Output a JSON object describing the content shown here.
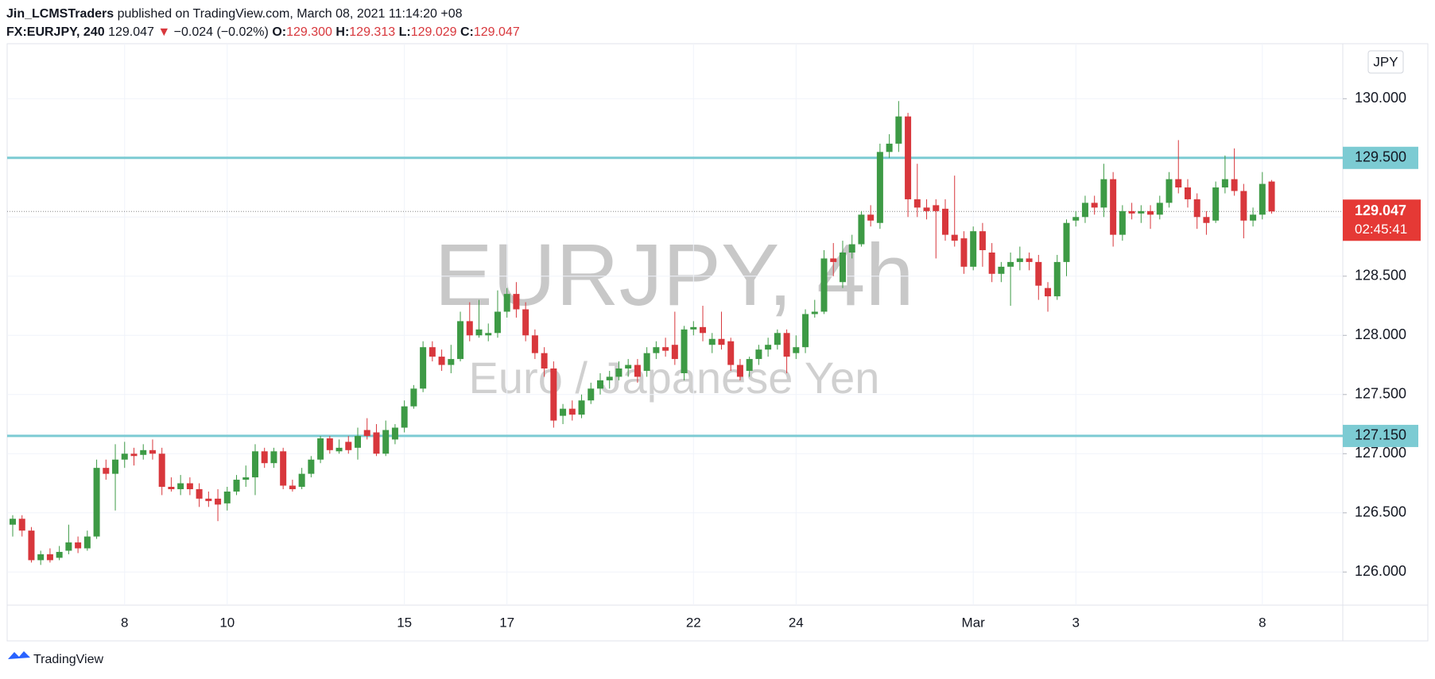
{
  "header": {
    "user": "Jin_LCMSTraders",
    "published": "published on TradingView.com, March 08, 2021 11:14:20 +08",
    "symbol": "FX:EURJPY, 240",
    "last": "129.047",
    "arrow": "▼",
    "change": "−0.024 (−0.02%)",
    "open_label": "O:",
    "open": "129.300",
    "high_label": "H:",
    "high": "129.313",
    "low_label": "L:",
    "low": "129.029",
    "close_label": "C:",
    "close": "129.047"
  },
  "chart_data": {
    "type": "candlestick",
    "watermark": "EURJPY, 4h",
    "watermark_subtitle": "Euro / Japanese Yen",
    "currency": "JPY",
    "brand": "TradingView",
    "up_color": "#3d9a45",
    "down_color": "#d8373c",
    "grid": true,
    "ylim": [
      125.72,
      130.465
    ],
    "yticks": [
      {
        "value": 126,
        "label": "126.000"
      },
      {
        "value": 126.5,
        "label": "126.500"
      },
      {
        "value": 127,
        "label": "127.000"
      },
      {
        "value": 127.5,
        "label": "127.500"
      },
      {
        "value": 128,
        "label": "128.000"
      },
      {
        "value": 128.5,
        "label": "128.500"
      },
      {
        "value": 129,
        "label": "129.000"
      },
      {
        "value": 129.5,
        "label": "129.500"
      },
      {
        "value": 130,
        "label": "130.000"
      }
    ],
    "hlines": [
      {
        "value": 129.5,
        "label": "129.500",
        "color": "#7ccbd3"
      },
      {
        "value": 127.15,
        "label": "127.150",
        "color": "#7ccbd3"
      }
    ],
    "last_price": {
      "value": 129.047,
      "label": "129.047",
      "countdown": "02:45:41",
      "color": "#e53935"
    },
    "categories": [
      null,
      null,
      null,
      null,
      null,
      null,
      null,
      null,
      null,
      null,
      null,
      null,
      "8",
      null,
      null,
      null,
      null,
      null,
      null,
      null,
      null,
      null,
      null,
      "10",
      null,
      null,
      null,
      null,
      null,
      null,
      null,
      null,
      null,
      null,
      null,
      null,
      null,
      null,
      null,
      null,
      null,
      null,
      "15",
      null,
      null,
      null,
      null,
      null,
      null,
      null,
      null,
      null,
      null,
      "17",
      null,
      null,
      null,
      null,
      null,
      null,
      null,
      null,
      null,
      null,
      null,
      null,
      null,
      null,
      null,
      null,
      null,
      null,
      null,
      "22",
      null,
      null,
      null,
      null,
      null,
      null,
      null,
      null,
      null,
      null,
      "24",
      null,
      null,
      null,
      null,
      null,
      null,
      null,
      null,
      null,
      null,
      null,
      null,
      null,
      null,
      null,
      null,
      null,
      null,
      "Mar",
      null,
      null,
      null,
      null,
      null,
      null,
      null,
      null,
      null,
      null,
      "3",
      null,
      null,
      null,
      null,
      null,
      null,
      null,
      null,
      null,
      null,
      null,
      null,
      null,
      null,
      null,
      null,
      null,
      null,
      null,
      "8",
      null
    ],
    "ohlc": [
      [
        126.4,
        126.48,
        126.3,
        126.45
      ],
      [
        126.45,
        126.48,
        126.3,
        126.35
      ],
      [
        126.35,
        126.38,
        126.08,
        126.1
      ],
      [
        126.1,
        126.18,
        126.06,
        126.15
      ],
      [
        126.15,
        126.2,
        126.08,
        126.1
      ],
      [
        126.12,
        126.22,
        126.1,
        126.17
      ],
      [
        126.18,
        126.4,
        126.15,
        126.25
      ],
      [
        126.25,
        126.3,
        126.16,
        126.2
      ],
      [
        126.2,
        126.35,
        126.18,
        126.3
      ],
      [
        126.3,
        126.95,
        126.28,
        126.88
      ],
      [
        126.88,
        126.95,
        126.78,
        126.83
      ],
      [
        126.83,
        127.08,
        126.52,
        126.95
      ],
      [
        126.95,
        127.1,
        126.88,
        127.0
      ],
      [
        127.0,
        127.05,
        126.9,
        126.98
      ],
      [
        126.99,
        127.08,
        126.95,
        127.03
      ],
      [
        127.03,
        127.12,
        126.95,
        127.0
      ],
      [
        127.0,
        127.05,
        126.65,
        126.72
      ],
      [
        126.72,
        126.8,
        126.68,
        126.7
      ],
      [
        126.7,
        126.82,
        126.65,
        126.75
      ],
      [
        126.75,
        126.8,
        126.65,
        126.7
      ],
      [
        126.7,
        126.75,
        126.55,
        126.62
      ],
      [
        126.62,
        126.68,
        126.55,
        126.6
      ],
      [
        126.62,
        126.7,
        126.43,
        126.57
      ],
      [
        126.58,
        126.72,
        126.52,
        126.68
      ],
      [
        126.68,
        126.82,
        126.65,
        126.78
      ],
      [
        126.78,
        126.9,
        126.72,
        126.8
      ],
      [
        126.8,
        127.08,
        126.65,
        127.02
      ],
      [
        127.02,
        127.05,
        126.88,
        126.92
      ],
      [
        126.92,
        127.05,
        126.88,
        127.02
      ],
      [
        127.02,
        127.05,
        126.7,
        126.73
      ],
      [
        126.73,
        126.78,
        126.68,
        126.7
      ],
      [
        126.72,
        126.88,
        126.7,
        126.83
      ],
      [
        126.83,
        126.98,
        126.8,
        126.95
      ],
      [
        126.95,
        127.15,
        126.92,
        127.13
      ],
      [
        127.13,
        127.15,
        127.0,
        127.03
      ],
      [
        127.02,
        127.12,
        127.0,
        127.05
      ],
      [
        127.1,
        127.15,
        127.0,
        127.03
      ],
      [
        127.05,
        127.22,
        126.95,
        127.15
      ],
      [
        127.2,
        127.3,
        127.12,
        127.15
      ],
      [
        127.18,
        127.25,
        126.98,
        127.0
      ],
      [
        127.0,
        127.28,
        126.98,
        127.2
      ],
      [
        127.12,
        127.25,
        127.08,
        127.22
      ],
      [
        127.22,
        127.45,
        127.18,
        127.4
      ],
      [
        127.4,
        127.58,
        127.38,
        127.55
      ],
      [
        127.55,
        127.95,
        127.52,
        127.9
      ],
      [
        127.9,
        127.95,
        127.78,
        127.82
      ],
      [
        127.82,
        127.88,
        127.7,
        127.75
      ],
      [
        127.75,
        127.92,
        127.68,
        127.8
      ],
      [
        127.8,
        128.2,
        127.78,
        128.12
      ],
      [
        128.12,
        128.28,
        127.95,
        128.0
      ],
      [
        128.0,
        128.3,
        127.98,
        128.05
      ],
      [
        128.0,
        128.1,
        127.95,
        128.02
      ],
      [
        128.02,
        128.38,
        127.98,
        128.2
      ],
      [
        128.2,
        128.4,
        128.15,
        128.35
      ],
      [
        128.35,
        128.45,
        128.15,
        128.22
      ],
      [
        128.22,
        128.28,
        127.95,
        128.0
      ],
      [
        128.0,
        128.05,
        127.8,
        127.85
      ],
      [
        127.85,
        127.9,
        127.65,
        127.72
      ],
      [
        127.72,
        127.78,
        127.22,
        127.28
      ],
      [
        127.32,
        127.42,
        127.25,
        127.38
      ],
      [
        127.38,
        127.45,
        127.28,
        127.33
      ],
      [
        127.33,
        127.5,
        127.3,
        127.45
      ],
      [
        127.45,
        127.6,
        127.42,
        127.55
      ],
      [
        127.55,
        127.68,
        127.5,
        127.62
      ],
      [
        127.62,
        127.7,
        127.55,
        127.65
      ],
      [
        127.65,
        127.78,
        127.62,
        127.72
      ],
      [
        127.72,
        127.8,
        127.65,
        127.75
      ],
      [
        127.75,
        127.8,
        127.6,
        127.65
      ],
      [
        127.7,
        127.9,
        127.65,
        127.85
      ],
      [
        127.85,
        127.95,
        127.8,
        127.9
      ],
      [
        127.9,
        127.98,
        127.82,
        127.87
      ],
      [
        127.92,
        128.2,
        127.75,
        127.8
      ],
      [
        127.68,
        128.08,
        127.62,
        128.05
      ],
      [
        128.05,
        128.12,
        128.0,
        128.07
      ],
      [
        128.07,
        128.25,
        127.95,
        128.02
      ],
      [
        127.92,
        128.02,
        127.85,
        127.97
      ],
      [
        127.97,
        128.2,
        127.88,
        127.92
      ],
      [
        127.95,
        127.98,
        127.7,
        127.75
      ],
      [
        127.75,
        127.8,
        127.62,
        127.65
      ],
      [
        127.7,
        127.82,
        127.65,
        127.8
      ],
      [
        127.8,
        127.92,
        127.75,
        127.88
      ],
      [
        127.88,
        127.98,
        127.82,
        127.92
      ],
      [
        127.92,
        128.05,
        127.88,
        128.02
      ],
      [
        128.02,
        128.05,
        127.68,
        127.82
      ],
      [
        127.85,
        128.0,
        127.8,
        127.9
      ],
      [
        127.9,
        128.22,
        127.85,
        128.18
      ],
      [
        128.18,
        128.3,
        128.15,
        128.2
      ],
      [
        128.2,
        128.72,
        128.18,
        128.65
      ],
      [
        128.65,
        128.78,
        128.5,
        128.62
      ],
      [
        128.45,
        128.8,
        128.4,
        128.7
      ],
      [
        128.7,
        128.85,
        128.65,
        128.77
      ],
      [
        128.77,
        129.05,
        128.75,
        129.02
      ],
      [
        129.02,
        129.1,
        128.92,
        128.97
      ],
      [
        128.95,
        129.62,
        128.9,
        129.55
      ],
      [
        129.55,
        129.7,
        129.5,
        129.62
      ],
      [
        129.62,
        129.98,
        129.55,
        129.85
      ],
      [
        129.85,
        129.88,
        129.0,
        129.15
      ],
      [
        129.15,
        129.45,
        129.0,
        129.08
      ],
      [
        129.08,
        129.15,
        128.98,
        129.05
      ],
      [
        129.1,
        129.15,
        128.65,
        129.05
      ],
      [
        129.07,
        129.15,
        128.8,
        128.85
      ],
      [
        128.85,
        129.35,
        128.75,
        128.8
      ],
      [
        128.82,
        128.88,
        128.52,
        128.58
      ],
      [
        128.58,
        128.92,
        128.55,
        128.88
      ],
      [
        128.88,
        128.95,
        128.58,
        128.72
      ],
      [
        128.7,
        128.78,
        128.45,
        128.52
      ],
      [
        128.52,
        128.62,
        128.45,
        128.58
      ],
      [
        128.58,
        128.7,
        128.25,
        128.62
      ],
      [
        128.62,
        128.75,
        128.55,
        128.65
      ],
      [
        128.65,
        128.7,
        128.55,
        128.62
      ],
      [
        128.62,
        128.68,
        128.3,
        128.42
      ],
      [
        128.4,
        128.45,
        128.2,
        128.33
      ],
      [
        128.33,
        128.68,
        128.3,
        128.62
      ],
      [
        128.62,
        128.98,
        128.5,
        128.95
      ],
      [
        128.97,
        129.05,
        128.92,
        129.0
      ],
      [
        129.0,
        129.18,
        128.95,
        129.12
      ],
      [
        129.12,
        129.18,
        129.02,
        129.08
      ],
      [
        129.08,
        129.45,
        129.0,
        129.32
      ],
      [
        129.32,
        129.38,
        128.75,
        128.85
      ],
      [
        128.85,
        129.1,
        128.8,
        129.05
      ],
      [
        129.05,
        129.12,
        128.98,
        129.03
      ],
      [
        129.03,
        129.1,
        128.95,
        129.05
      ],
      [
        129.05,
        129.1,
        128.9,
        129.02
      ],
      [
        129.02,
        129.18,
        128.98,
        129.12
      ],
      [
        129.12,
        129.38,
        129.08,
        129.32
      ],
      [
        129.32,
        129.65,
        129.2,
        129.25
      ],
      [
        129.25,
        129.32,
        129.08,
        129.15
      ],
      [
        129.15,
        129.2,
        128.9,
        129.0
      ],
      [
        129.0,
        129.05,
        128.85,
        128.95
      ],
      [
        128.97,
        129.3,
        128.95,
        129.25
      ],
      [
        129.25,
        129.52,
        129.2,
        129.32
      ],
      [
        129.32,
        129.58,
        129.18,
        129.22
      ],
      [
        129.22,
        129.28,
        128.82,
        128.97
      ],
      [
        128.97,
        129.08,
        128.92,
        129.02
      ],
      [
        129.02,
        129.38,
        128.98,
        129.28
      ],
      [
        129.3,
        129.313,
        129.029,
        129.047
      ]
    ]
  }
}
